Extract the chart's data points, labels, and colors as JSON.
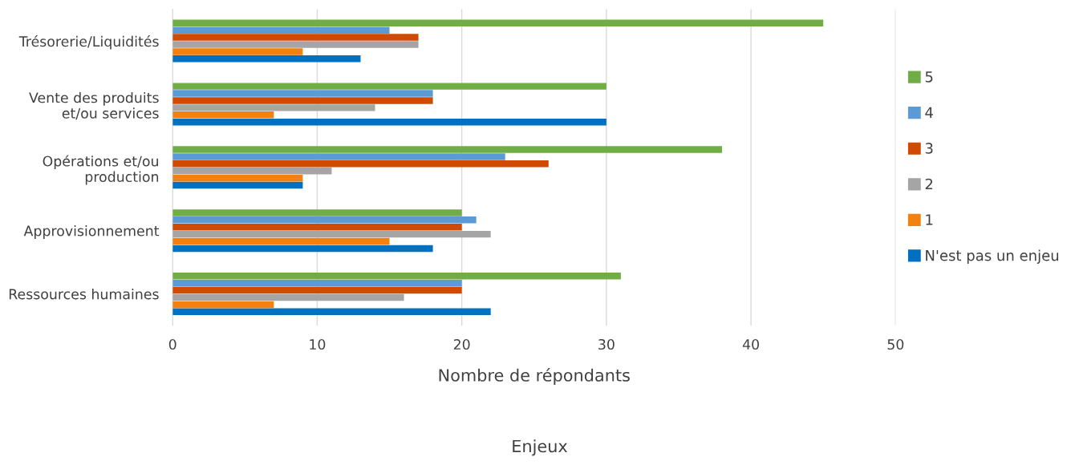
{
  "chart_data": {
    "type": "bar",
    "orientation": "horizontal",
    "xlabel": "Nombre de répondants",
    "annotations": [
      "Enjeux"
    ],
    "categories": [
      "Trésorerie/Liquidités",
      "Vente des produits\net/ou services",
      "Opérations et/ou\nproduction",
      "Approvisionnement",
      "Ressources humaines"
    ],
    "series": [
      {
        "name": "N'est pas un enjeu",
        "color": "#0070c0",
        "values": [
          13,
          30,
          9,
          18,
          22
        ]
      },
      {
        "name": "1",
        "color": "#f4800f",
        "values": [
          9,
          7,
          9,
          15,
          7
        ]
      },
      {
        "name": "2",
        "color": "#a5a5a5",
        "values": [
          17,
          14,
          11,
          22,
          16
        ]
      },
      {
        "name": "3",
        "color": "#d04a02",
        "values": [
          17,
          18,
          26,
          20,
          20
        ]
      },
      {
        "name": "4",
        "color": "#5b9bd5",
        "values": [
          15,
          18,
          23,
          21,
          20
        ]
      },
      {
        "name": "5",
        "color": "#70ad47",
        "values": [
          45,
          30,
          38,
          20,
          31
        ]
      }
    ],
    "xlim": [
      0,
      50
    ],
    "xticks": [
      0,
      10,
      20,
      30,
      40,
      50
    ],
    "grid": "x",
    "legend": "right"
  }
}
